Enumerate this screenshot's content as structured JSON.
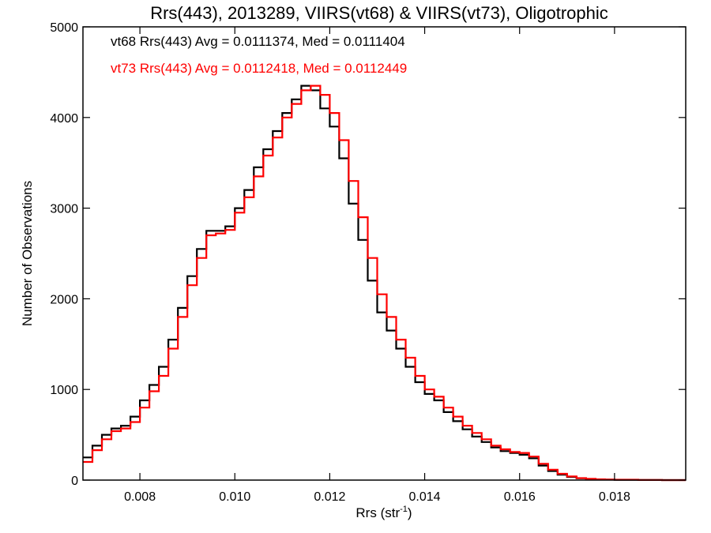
{
  "chart_data": {
    "type": "line",
    "title": "Rrs(443), 2013289, VIIRS(vt68) & VIIRS(vt73), Oligotrophic",
    "xlabel": "Rrs (str",
    "xlabel_sup": "-1",
    "xlabel_close": ")",
    "ylabel": "Number of Observations",
    "xlim": [
      0.0068,
      0.0195
    ],
    "ylim": [
      0,
      5000
    ],
    "x_ticks": [
      0.008,
      0.01,
      0.012,
      0.014,
      0.016,
      0.018
    ],
    "x_tick_labels": [
      "0.008",
      "0.010",
      "0.012",
      "0.014",
      "0.016",
      "0.018"
    ],
    "y_ticks": [
      0,
      1000,
      2000,
      3000,
      4000,
      5000
    ],
    "y_tick_labels": [
      "0",
      "1000",
      "2000",
      "3000",
      "4000",
      "5000"
    ],
    "grid": false,
    "annotations": [
      {
        "text": "vt68 Rrs(443) Avg = 0.0111374, Med = 0.0111404",
        "color": "#000000"
      },
      {
        "text": "vt73 Rrs(443) Avg = 0.0112418, Med = 0.0112449",
        "color": "#ff0000"
      }
    ],
    "series": [
      {
        "color": "#000000",
        "x": [
          0.0068,
          0.007,
          0.0072,
          0.0074,
          0.0076,
          0.0078,
          0.008,
          0.0082,
          0.0084,
          0.0086,
          0.0088,
          0.009,
          0.0092,
          0.0094,
          0.0096,
          0.0098,
          0.01,
          0.0102,
          0.0104,
          0.0106,
          0.0108,
          0.011,
          0.0112,
          0.0114,
          0.0116,
          0.0118,
          0.012,
          0.0122,
          0.0124,
          0.0126,
          0.0128,
          0.013,
          0.0132,
          0.0134,
          0.0136,
          0.0138,
          0.014,
          0.0142,
          0.0144,
          0.0146,
          0.0148,
          0.015,
          0.0152,
          0.0154,
          0.0156,
          0.0158,
          0.016,
          0.0162,
          0.0164,
          0.0166,
          0.0168,
          0.017,
          0.0172,
          0.0174,
          0.0176,
          0.0178,
          0.018,
          0.0185,
          0.019,
          0.0195
        ],
        "y": [
          250,
          380,
          500,
          570,
          600,
          700,
          880,
          1050,
          1250,
          1550,
          1900,
          2250,
          2550,
          2750,
          2750,
          2800,
          3000,
          3200,
          3450,
          3650,
          3850,
          4050,
          4200,
          4350,
          4300,
          4100,
          3900,
          3550,
          3050,
          2650,
          2200,
          1850,
          1650,
          1450,
          1250,
          1080,
          950,
          880,
          750,
          650,
          560,
          480,
          420,
          360,
          320,
          300,
          280,
          240,
          160,
          100,
          60,
          35,
          20,
          12,
          8,
          5,
          3,
          1,
          0,
          0
        ]
      },
      {
        "color": "#ff0000",
        "x": [
          0.0068,
          0.007,
          0.0072,
          0.0074,
          0.0076,
          0.0078,
          0.008,
          0.0082,
          0.0084,
          0.0086,
          0.0088,
          0.009,
          0.0092,
          0.0094,
          0.0096,
          0.0098,
          0.01,
          0.0102,
          0.0104,
          0.0106,
          0.0108,
          0.011,
          0.0112,
          0.0114,
          0.0116,
          0.0118,
          0.012,
          0.0122,
          0.0124,
          0.0126,
          0.0128,
          0.013,
          0.0132,
          0.0134,
          0.0136,
          0.0138,
          0.014,
          0.0142,
          0.0144,
          0.0146,
          0.0148,
          0.015,
          0.0152,
          0.0154,
          0.0156,
          0.0158,
          0.016,
          0.0162,
          0.0164,
          0.0166,
          0.0168,
          0.017,
          0.0172,
          0.0174,
          0.0176,
          0.0178,
          0.018,
          0.0185,
          0.019,
          0.0195
        ],
        "y": [
          200,
          330,
          450,
          540,
          570,
          640,
          800,
          980,
          1150,
          1450,
          1800,
          2150,
          2450,
          2700,
          2720,
          2760,
          2950,
          3120,
          3350,
          3580,
          3780,
          4000,
          4150,
          4300,
          4350,
          4250,
          4050,
          3750,
          3300,
          2900,
          2450,
          2050,
          1800,
          1550,
          1350,
          1150,
          1000,
          920,
          800,
          700,
          600,
          520,
          450,
          380,
          340,
          310,
          300,
          260,
          180,
          115,
          70,
          40,
          22,
          14,
          9,
          6,
          4,
          1,
          0,
          0
        ]
      }
    ]
  }
}
